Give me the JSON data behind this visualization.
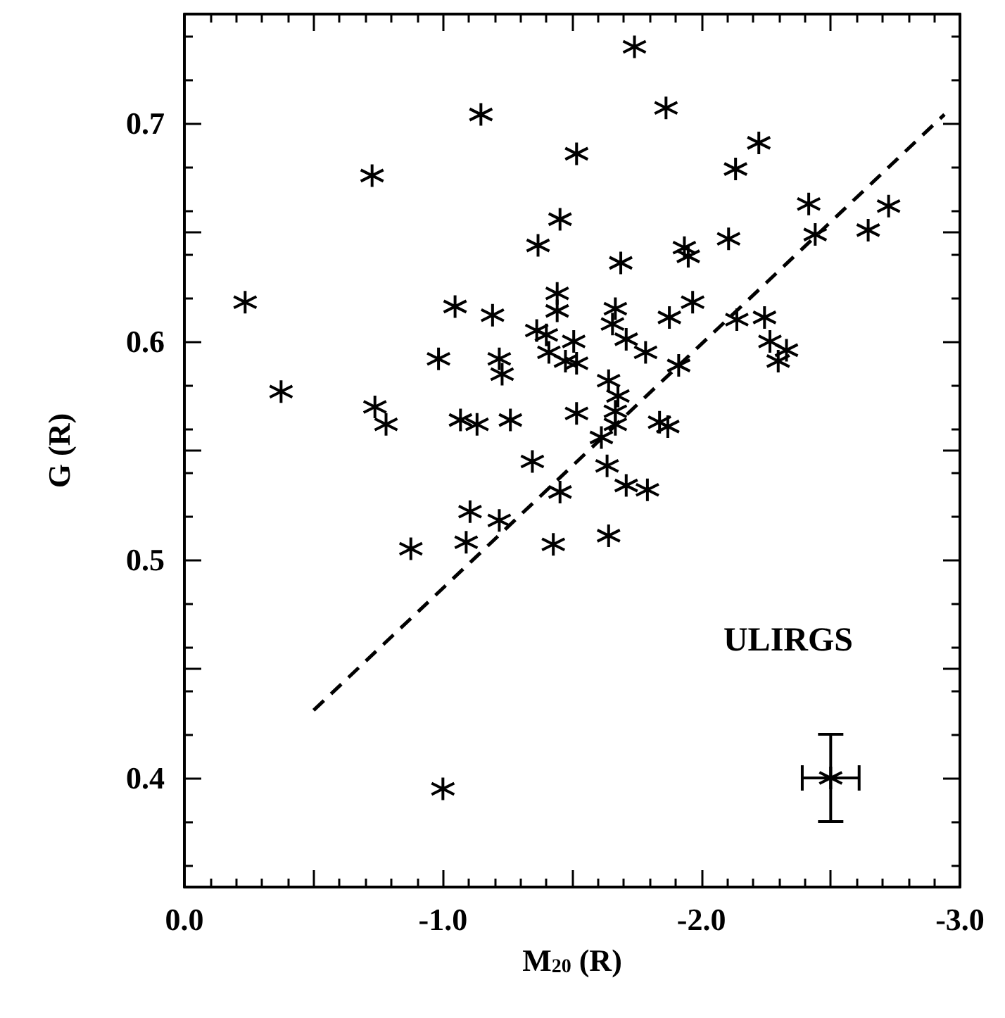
{
  "chart_data": {
    "type": "scatter",
    "xlabel": "M$_{20}$ (R)",
    "ylabel": "G (R)",
    "annotations": [
      "ULIRGS"
    ],
    "xlim": [
      0,
      -3
    ],
    "ylim": [
      0.35,
      0.75
    ],
    "xticks": [
      {
        "value": 0,
        "label": "0.0"
      },
      {
        "value": -0.5,
        "label": null
      },
      {
        "value": -1,
        "label": "-1.0"
      },
      {
        "value": -1.5,
        "label": null
      },
      {
        "value": -2,
        "label": "-2.0"
      },
      {
        "value": -2.5,
        "label": null
      },
      {
        "value": -3,
        "label": "-3.0"
      }
    ],
    "yticks": [
      {
        "value": 0.35,
        "label": null
      },
      0.4,
      {
        "value": 0.45,
        "label": null
      },
      0.5,
      {
        "value": 0.55,
        "label": null
      },
      0.6,
      {
        "value": 0.65,
        "label": null
      },
      0.7,
      {
        "value": 0.75,
        "label": null
      }
    ],
    "grid": false,
    "series": [
      {
        "marker": "cross",
        "color": "#000000",
        "x": [
          -0.235,
          -0.374,
          -0.726,
          -0.737,
          -0.78,
          -1.147,
          -1.741,
          -1.863,
          -1.517,
          -2.132,
          -2.222,
          -2.415,
          -2.44,
          -2.645,
          -2.724,
          -1.453,
          -1.368,
          -1.688,
          -1.934,
          -1.949,
          -2.105,
          -1.047,
          -1.192,
          -0.983,
          -1.218,
          -1.229,
          -1.442,
          -1.442,
          -1.363,
          -1.4,
          -1.41,
          -1.474,
          -1.506,
          -1.517,
          -1.667,
          -1.656,
          -1.709,
          -1.784,
          -1.876,
          -1.966,
          -1.912,
          -2.137,
          -2.244,
          -2.265,
          -2.329,
          -2.297,
          -1.068,
          -1.132,
          -1.261,
          -1.517,
          -1.641,
          -1.677,
          -1.667,
          -1.667,
          -1.838,
          -1.87,
          -1.613,
          -1.346,
          -1.635,
          -1.709,
          -1.791,
          -1.453,
          -1.105,
          -1.218,
          -0.876,
          -1.09,
          -1.427,
          -1.641,
          -1.0
        ],
        "values": [
          0.618,
          0.577,
          0.676,
          0.57,
          0.562,
          0.704,
          0.735,
          0.707,
          0.686,
          0.679,
          0.691,
          0.663,
          0.649,
          0.651,
          0.662,
          0.656,
          0.644,
          0.636,
          0.643,
          0.639,
          0.647,
          0.616,
          0.612,
          0.592,
          0.592,
          0.585,
          0.622,
          0.614,
          0.605,
          0.603,
          0.595,
          0.591,
          0.6,
          0.59,
          0.615,
          0.608,
          0.601,
          0.595,
          0.611,
          0.618,
          0.589,
          0.61,
          0.611,
          0.6,
          0.596,
          0.591,
          0.564,
          0.562,
          0.564,
          0.567,
          0.582,
          0.575,
          0.568,
          0.562,
          0.563,
          0.561,
          0.556,
          0.545,
          0.543,
          0.534,
          0.532,
          0.531,
          0.522,
          0.518,
          0.505,
          0.508,
          0.507,
          0.511,
          0.395
        ]
      },
      {
        "type": "line",
        "marker": "none",
        "line_style": "dashed",
        "color": "#000000",
        "x": [
          -0.5,
          -2.94
        ],
        "values": [
          0.431,
          0.704
        ]
      },
      {
        "type": "scatter",
        "marker": "cross",
        "color": "#000000",
        "x": [
          -2.5
        ],
        "values": [
          0.4
        ],
        "errors": [
          0.02
        ],
        "xerrors": [
          0.11
        ]
      }
    ]
  }
}
